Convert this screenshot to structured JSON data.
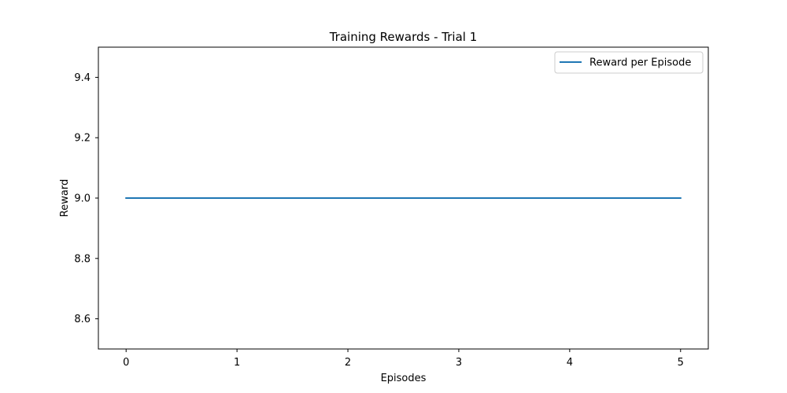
{
  "chart_data": {
    "type": "line",
    "title": "Training Rewards - Trial 1",
    "xlabel": "Episodes",
    "ylabel": "Reward",
    "x": [
      0,
      1,
      2,
      3,
      4,
      5
    ],
    "series": [
      {
        "name": "Reward per Episode",
        "values": [
          9.0,
          9.0,
          9.0,
          9.0,
          9.0,
          9.0
        ],
        "color": "#1f77b4"
      }
    ],
    "xlim": [
      -0.25,
      5.25
    ],
    "ylim": [
      8.5,
      9.5
    ],
    "xticks": [
      0,
      1,
      2,
      3,
      4,
      5
    ],
    "yticks": [
      8.6,
      8.8,
      9.0,
      9.2,
      9.4
    ],
    "xtick_labels": [
      "0",
      "1",
      "2",
      "3",
      "4",
      "5"
    ],
    "ytick_labels": [
      "8.6",
      "8.8",
      "9.0",
      "9.2",
      "9.4"
    ],
    "grid": false,
    "legend_position": "top-right"
  }
}
